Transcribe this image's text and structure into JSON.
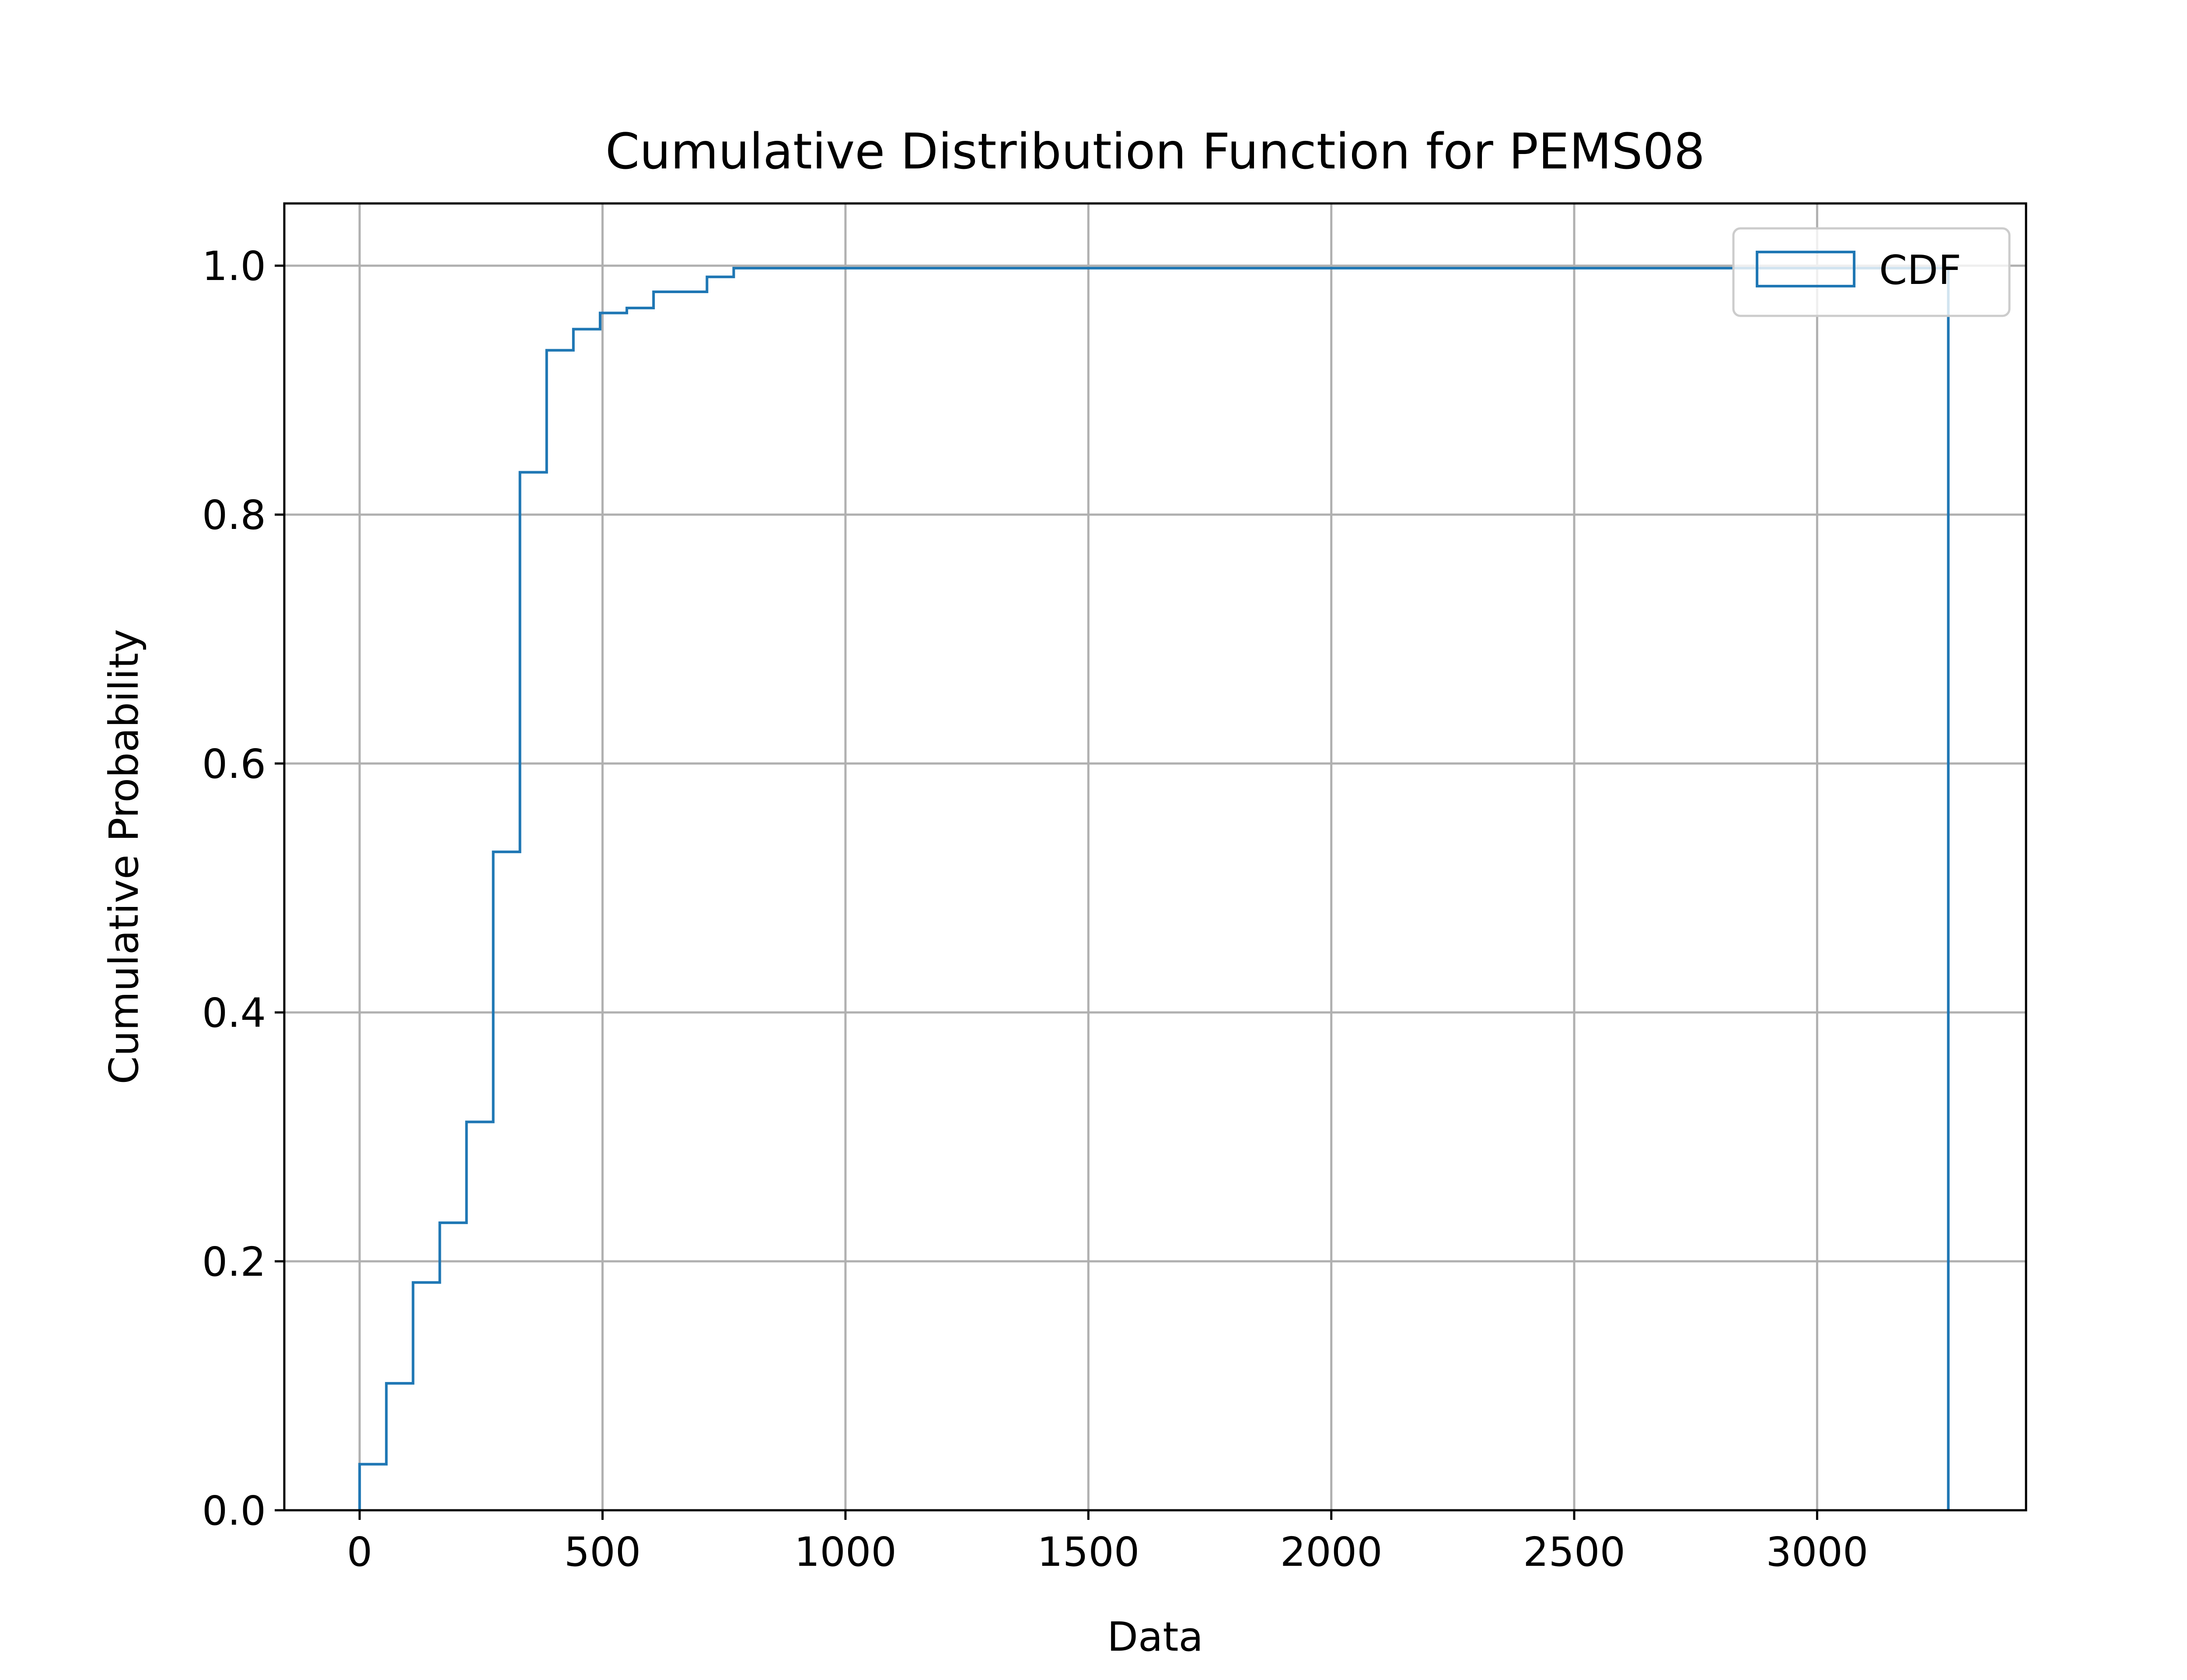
{
  "chart_data": {
    "type": "line",
    "subtype": "step",
    "title": "Cumulative Distribution Function for PEMS08",
    "xlabel": "Data",
    "ylabel": "Cumulative Probability",
    "xlim": [
      -155,
      3430
    ],
    "ylim": [
      0,
      1.05
    ],
    "xticks": [
      0,
      500,
      1000,
      1500,
      2000,
      2500,
      3000
    ],
    "xtick_labels": [
      "0",
      "500",
      "1000",
      "1500",
      "2000",
      "2500",
      "3000"
    ],
    "yticks": [
      0,
      0.2,
      0.4,
      0.6,
      0.8,
      1.0
    ],
    "ytick_labels": [
      "0.0",
      "0.2",
      "0.4",
      "0.6",
      "0.8",
      "1.0"
    ],
    "grid": true,
    "legend": {
      "position": "top-right",
      "entries": [
        "CDF"
      ]
    },
    "color": "#1f77b4",
    "series": [
      {
        "name": "CDF",
        "x": [
          0,
          55,
          110,
          165,
          220,
          275,
          330,
          385,
          440,
          495,
          550,
          605,
          660,
          715,
          770,
          3270
        ],
        "y": [
          0.037,
          0.102,
          0.183,
          0.231,
          0.312,
          0.529,
          0.834,
          0.932,
          0.949,
          0.962,
          0.966,
          0.979,
          0.979,
          0.991,
          0.998,
          1.0
        ],
        "end_x": 3270
      }
    ]
  }
}
